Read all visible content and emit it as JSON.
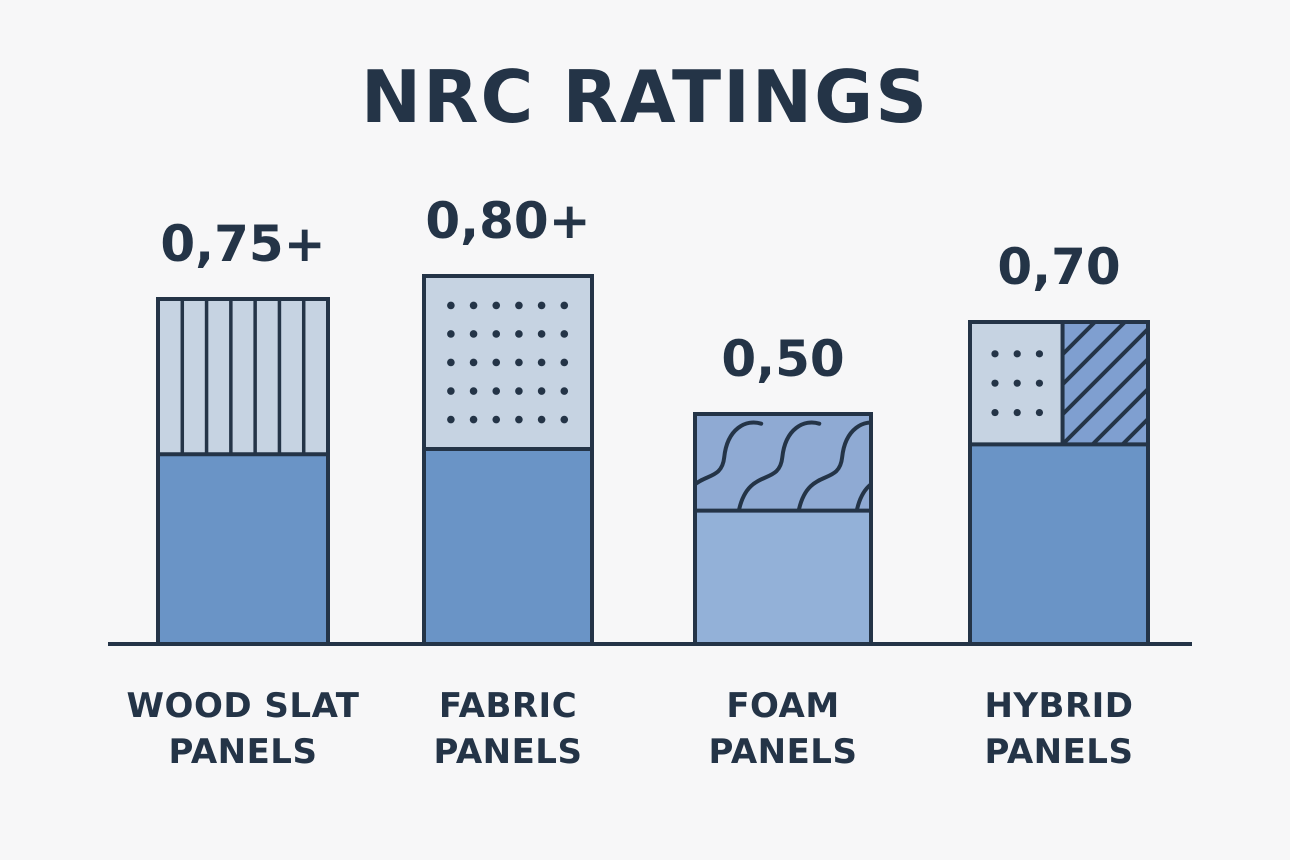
{
  "chart_data": {
    "type": "bar",
    "title": "NRC RATINGS",
    "xlabel": "",
    "ylabel": "",
    "ylim": [
      0,
      1.0
    ],
    "categories": [
      {
        "line1": "WOOD SLAT",
        "line2": "PANELS"
      },
      {
        "line1": "FABRIC",
        "line2": "PANELS"
      },
      {
        "line1": "FOAM",
        "line2": "PANELS"
      },
      {
        "line1": "HYBRID",
        "line2": "PANELS"
      }
    ],
    "values": [
      0.75,
      0.8,
      0.5,
      0.7
    ],
    "value_labels": [
      "0,75+",
      "0,80+",
      "0,50",
      "0,70"
    ],
    "patterns": [
      "vertical-slats",
      "dots",
      "waves",
      "dots-and-hatch"
    ],
    "grid": false,
    "legend": "none"
  },
  "colors": {
    "background": "#f7f7f8",
    "ink": "#243447",
    "base_blue": "#6a94c6",
    "foam_base": "#93b1d8",
    "light_fill": "#c6d3e2",
    "wave_fill": "#8faad3",
    "hatch_fill": "#7f9fd0"
  }
}
